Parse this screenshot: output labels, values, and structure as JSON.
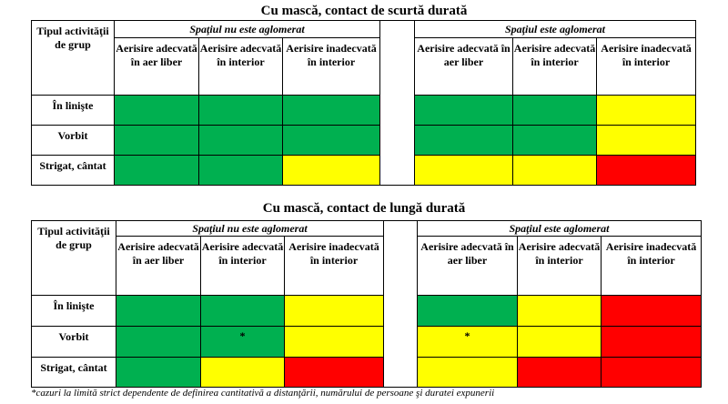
{
  "tables": [
    {
      "title": "Cu mască, contact de scurtă durată",
      "row_header": "Tipul activităţii de grup",
      "groups": [
        "Spaţiul nu este aglomerat",
        "Spaţiul este aglomerat"
      ],
      "columns": [
        "Aerisire adecvată în aer liber",
        "Aerisire adecvată în interior",
        "Aerisire inadecvată în interior"
      ],
      "rows": [
        {
          "label": "În linişte",
          "cells": [
            {
              "color": "green",
              "mark": ""
            },
            {
              "color": "green",
              "mark": ""
            },
            {
              "color": "green",
              "mark": ""
            },
            {
              "color": "green",
              "mark": ""
            },
            {
              "color": "green",
              "mark": ""
            },
            {
              "color": "yellow",
              "mark": ""
            }
          ]
        },
        {
          "label": "Vorbit",
          "cells": [
            {
              "color": "green",
              "mark": ""
            },
            {
              "color": "green",
              "mark": ""
            },
            {
              "color": "green",
              "mark": ""
            },
            {
              "color": "green",
              "mark": ""
            },
            {
              "color": "green",
              "mark": ""
            },
            {
              "color": "yellow",
              "mark": ""
            }
          ]
        },
        {
          "label": "Strigat, cântat",
          "cells": [
            {
              "color": "green",
              "mark": ""
            },
            {
              "color": "green",
              "mark": ""
            },
            {
              "color": "yellow",
              "mark": ""
            },
            {
              "color": "yellow",
              "mark": ""
            },
            {
              "color": "yellow",
              "mark": ""
            },
            {
              "color": "red",
              "mark": ""
            }
          ]
        }
      ]
    },
    {
      "title": "Cu mască, contact de lungă durată",
      "row_header": "Tipul activităţii de grup",
      "groups": [
        "Spaţiul nu este aglomerat",
        "Spaţiul este aglomerat"
      ],
      "columns": [
        "Aerisire adecvată în aer liber",
        "Aerisire adecvată în interior",
        "Aerisire inadecvată în interior"
      ],
      "rows": [
        {
          "label": "În linişte",
          "cells": [
            {
              "color": "green",
              "mark": ""
            },
            {
              "color": "green",
              "mark": ""
            },
            {
              "color": "yellow",
              "mark": ""
            },
            {
              "color": "green",
              "mark": ""
            },
            {
              "color": "yellow",
              "mark": ""
            },
            {
              "color": "red",
              "mark": ""
            }
          ]
        },
        {
          "label": "Vorbit",
          "cells": [
            {
              "color": "green",
              "mark": ""
            },
            {
              "color": "green",
              "mark": "*"
            },
            {
              "color": "yellow",
              "mark": ""
            },
            {
              "color": "yellow",
              "mark": "*"
            },
            {
              "color": "yellow",
              "mark": ""
            },
            {
              "color": "red",
              "mark": ""
            }
          ]
        },
        {
          "label": "Strigat, cântat",
          "cells": [
            {
              "color": "green",
              "mark": ""
            },
            {
              "color": "yellow",
              "mark": ""
            },
            {
              "color": "red",
              "mark": ""
            },
            {
              "color": "yellow",
              "mark": ""
            },
            {
              "color": "red",
              "mark": ""
            },
            {
              "color": "red",
              "mark": ""
            }
          ]
        }
      ]
    }
  ],
  "footnote": "*cazuri la limită strict dependente de definirea cantitativă a distanţării, numărului de persoane şi duratei expunerii",
  "colors": {
    "green": "#00b050",
    "yellow": "#ffff00",
    "red": "#ff0000",
    "white": "#ffffff"
  }
}
